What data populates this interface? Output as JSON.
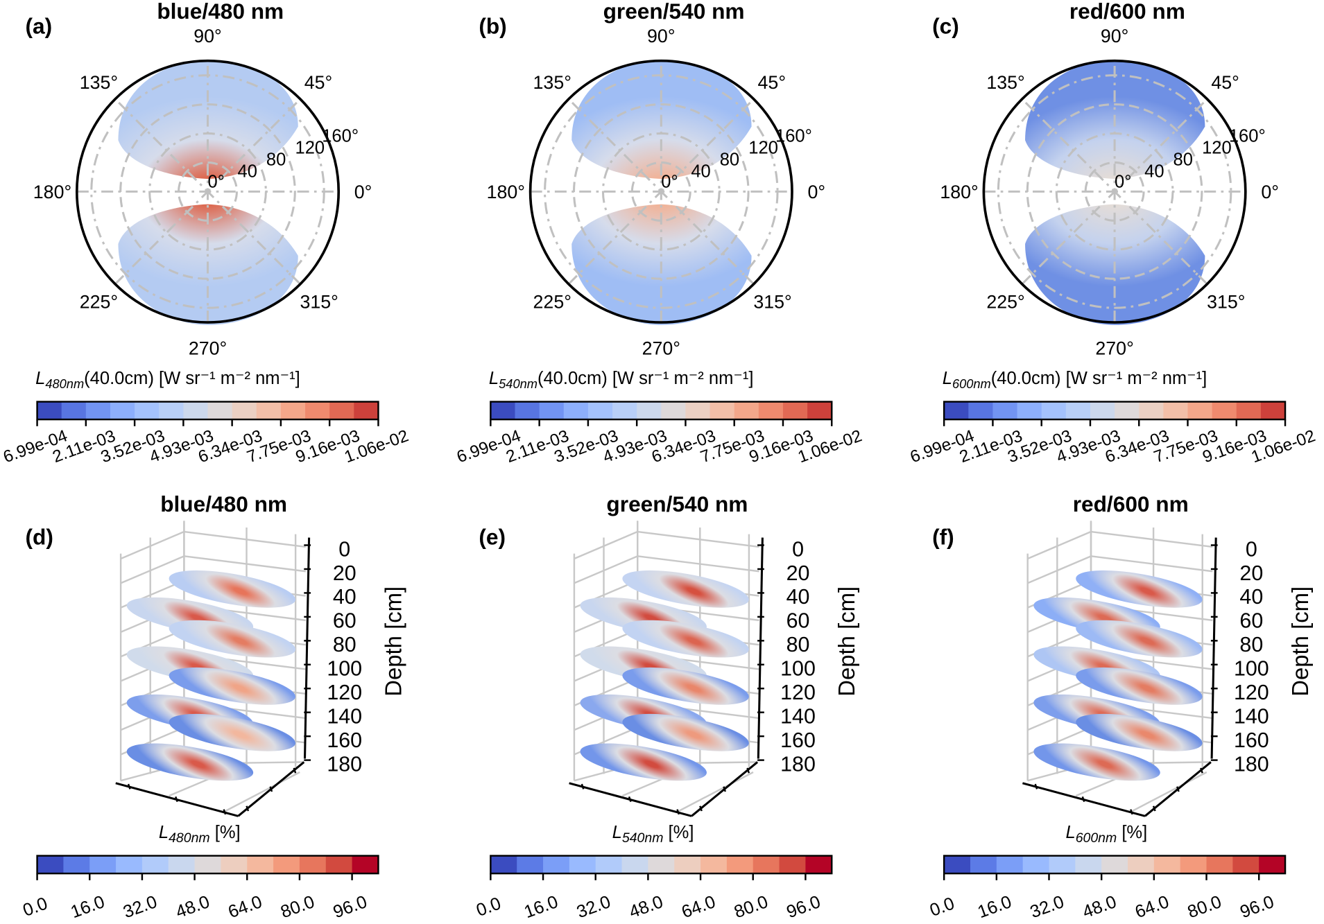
{
  "chart_data": [
    {
      "panel": "(a)",
      "type": "polar-heatmap",
      "title": "blue/480 nm",
      "angle_labels": [
        "0°",
        "45°",
        "90°",
        "135°",
        "180°",
        "225°",
        "270°",
        "315°"
      ],
      "radial_labels": [
        "0°",
        "40",
        "80",
        "120",
        "160°"
      ],
      "colorbar_label": {
        "sym": "L",
        "sub": "480nm",
        "rest": "(40.0cm) [W  sr⁻¹  m⁻²  nm⁻¹]"
      },
      "colorbar_ticks": [
        "6.99e-04",
        "2.11e-03",
        "3.52e-03",
        "4.93e-03",
        "6.34e-03",
        "7.75e-03",
        "9.16e-03",
        "1.06e-02"
      ],
      "center_color": "#dc6a52",
      "outer_color": "#b4cbf2"
    },
    {
      "panel": "(b)",
      "type": "polar-heatmap",
      "title": "green/540 nm",
      "angle_labels": [
        "0°",
        "45°",
        "90°",
        "135°",
        "180°",
        "225°",
        "270°",
        "315°"
      ],
      "radial_labels": [
        "0°",
        "40",
        "80",
        "120",
        "160°"
      ],
      "colorbar_label": {
        "sym": "L",
        "sub": "540nm",
        "rest": "(40.0cm) [W  sr⁻¹  m⁻²  nm⁻¹]"
      },
      "colorbar_ticks": [
        "6.99e-04",
        "2.11e-03",
        "3.52e-03",
        "4.93e-03",
        "6.34e-03",
        "7.75e-03",
        "9.16e-03",
        "1.06e-02"
      ],
      "center_color": "#f0b49a",
      "outer_color": "#9fbdf4"
    },
    {
      "panel": "(c)",
      "type": "polar-heatmap",
      "title": "red/600 nm",
      "angle_labels": [
        "0°",
        "45°",
        "90°",
        "135°",
        "180°",
        "225°",
        "270°",
        "315°"
      ],
      "radial_labels": [
        "0°",
        "40",
        "80",
        "120",
        "160°"
      ],
      "colorbar_label": {
        "sym": "L",
        "sub": "600nm",
        "rest": "(40.0cm) [W  sr⁻¹  m⁻²  nm⁻¹]"
      },
      "colorbar_ticks": [
        "6.99e-04",
        "2.11e-03",
        "3.52e-03",
        "4.93e-03",
        "6.34e-03",
        "7.75e-03",
        "9.16e-03",
        "1.06e-02"
      ],
      "center_color": "#e3dcd8",
      "outer_color": "#6f90e4"
    },
    {
      "panel": "(d)",
      "type": "3d-stacked-heatmap",
      "title": "blue/480 nm",
      "zlabel": "Depth [cm]",
      "z_ticks": [
        "0",
        "20",
        "40",
        "60",
        "80",
        "100",
        "120",
        "140",
        "160",
        "180"
      ],
      "xlabel": {
        "sym": "L",
        "sub": "480nm",
        "rest": " [%]"
      },
      "colorbar_ticks": [
        "0.0",
        "16.0",
        "32.0",
        "48.0",
        "64.0",
        "80.0",
        "96.0"
      ],
      "disc_colors": [
        [
          "#e7745a",
          "#b9cdf3"
        ],
        [
          "#d9594a",
          "#c8d6ef"
        ],
        [
          "#e47c62",
          "#c2d3f2"
        ],
        [
          "#d9594a",
          "#d0dbeb"
        ],
        [
          "#f0a487",
          "#7a9cec"
        ],
        [
          "#d9594a",
          "#7d9eec"
        ],
        [
          "#f2b79e",
          "#6a8ee4"
        ],
        [
          "#d9594a",
          "#6a8ee4"
        ]
      ]
    },
    {
      "panel": "(e)",
      "type": "3d-stacked-heatmap",
      "title": "green/540 nm",
      "zlabel": "Depth [cm]",
      "z_ticks": [
        "0",
        "20",
        "40",
        "60",
        "80",
        "100",
        "120",
        "140",
        "160",
        "180"
      ],
      "xlabel": {
        "sym": "L",
        "sub": "540nm",
        "rest": " [%]"
      },
      "colorbar_ticks": [
        "0.0",
        "16.0",
        "32.0",
        "48.0",
        "64.0",
        "80.0",
        "96.0"
      ],
      "disc_colors": [
        [
          "#d6503f",
          "#c4d4f2"
        ],
        [
          "#d24b3f",
          "#c8d6ef"
        ],
        [
          "#dc6450",
          "#c2d3f2"
        ],
        [
          "#d24b3f",
          "#d0dbeb"
        ],
        [
          "#e9866a",
          "#7a9cec"
        ],
        [
          "#d24b3f",
          "#8aa8ee"
        ],
        [
          "#ee9a7e",
          "#6a8ee4"
        ],
        [
          "#d24b3f",
          "#7396ea"
        ]
      ]
    },
    {
      "panel": "(f)",
      "type": "3d-stacked-heatmap",
      "title": "red/600 nm",
      "zlabel": "Depth [cm]",
      "z_ticks": [
        "0",
        "20",
        "40",
        "60",
        "80",
        "100",
        "120",
        "140",
        "160",
        "180"
      ],
      "xlabel": {
        "sym": "L",
        "sub": "600nm",
        "rest": " [%]"
      },
      "colorbar_ticks": [
        "0.0",
        "16.0",
        "32.0",
        "48.0",
        "64.0",
        "80.0",
        "96.0"
      ],
      "disc_colors": [
        [
          "#d9594a",
          "#90b0f6"
        ],
        [
          "#dd6a55",
          "#8caef6"
        ],
        [
          "#dd6a55",
          "#9dbaf5"
        ],
        [
          "#dd6a55",
          "#aec6f4"
        ],
        [
          "#e47c62",
          "#7a9cec"
        ],
        [
          "#dd6a55",
          "#7d9eec"
        ],
        [
          "#e9886c",
          "#6a8ee4"
        ],
        [
          "#dd6a55",
          "#7396ea"
        ]
      ]
    }
  ],
  "colormap": "coolwarm"
}
